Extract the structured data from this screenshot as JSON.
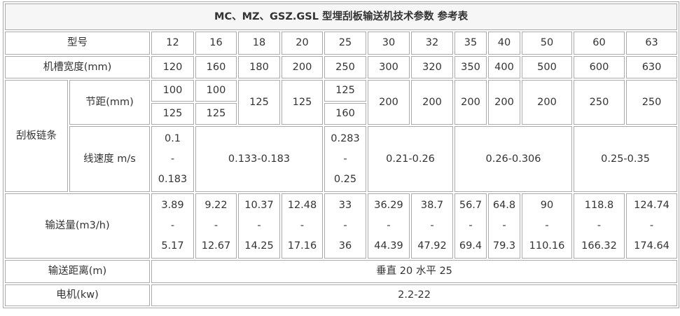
{
  "title": "MC、MZ、GSZ.GSL 型埋刮板输送机技术参数 参考表",
  "model": {
    "label": "型号",
    "values": [
      12,
      16,
      18,
      20,
      25,
      30,
      32,
      35,
      40,
      50,
      60,
      63
    ]
  },
  "trough_width": {
    "label": "机槽宽度(mm)",
    "values": [
      120,
      160,
      180,
      200,
      250,
      300,
      320,
      350,
      400,
      500,
      600,
      630
    ]
  },
  "scraper_chain": {
    "label": "刮板链条",
    "pitch": {
      "label": "节距(mm)",
      "values": [
        [
          100,
          125
        ],
        [
          100,
          125
        ],
        125,
        125,
        [
          125,
          160
        ],
        200,
        200,
        200,
        200,
        200,
        250,
        250
      ]
    },
    "speed": {
      "label": "线速度 m/s",
      "values": [
        "0.1\n-\n0.183",
        "0.133-0.183",
        "0.283\n-\n0.25",
        "0.21-0.26",
        "0.26-0.306",
        "0.25-0.35"
      ]
    }
  },
  "capacity": {
    "label": "输送量(m3/h)",
    "values": [
      "3.89\n-\n5.17",
      "9.22\n-\n12.67",
      "10.37\n-\n14.25",
      "12.48\n-\n17.16",
      "33\n-\n36",
      "36.29\n-\n44.39",
      "38.7\n-\n47.92",
      "56.7\n-\n69.4",
      "64.8\n-\n79.3",
      "90\n-\n110.16",
      "118.8\n-\n166.32",
      "124.74\n-\n174.64"
    ]
  },
  "distance": {
    "label": "输送距离(m)",
    "value": "垂直 20 水平 25"
  },
  "motor": {
    "label": "电机(kw)",
    "value": "2.2-22"
  }
}
